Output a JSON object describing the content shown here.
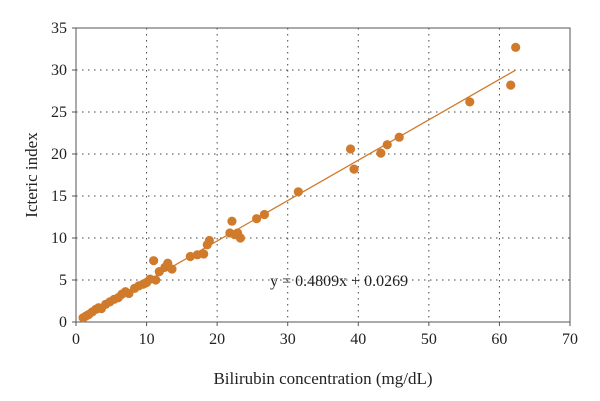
{
  "chart_data": {
    "type": "scatter",
    "title": "",
    "xlabel": "Bilirubin concentration (mg/dL)",
    "ylabel": "Icteric index",
    "xlim": [
      0,
      70
    ],
    "ylim": [
      0,
      35
    ],
    "x_ticks": [
      "0",
      "10",
      "20",
      "30",
      "40",
      "50",
      "60",
      "70"
    ],
    "y_ticks": [
      "0",
      "5",
      "10",
      "15",
      "20",
      "25",
      "30",
      "35"
    ],
    "grid": "dotted, x and y",
    "legend": "none",
    "marker_color": "#D07A2C",
    "trendline_color": "#D07A2C",
    "trendline": {
      "slope": 0.4809,
      "intercept": 0.0269,
      "x_range": [
        1,
        62.3
      ]
    },
    "annotation": {
      "text": "y = 0.4809x + 0.0269",
      "x": 27.5,
      "y": 4.3
    },
    "series": [
      {
        "points": [
          [
            1.0,
            0.5
          ],
          [
            1.4,
            0.7
          ],
          [
            1.8,
            0.9
          ],
          [
            2.3,
            1.2
          ],
          [
            2.8,
            1.5
          ],
          [
            3.2,
            1.7
          ],
          [
            3.6,
            1.6
          ],
          [
            4.2,
            2.1
          ],
          [
            4.8,
            2.4
          ],
          [
            5.4,
            2.7
          ],
          [
            6.0,
            2.9
          ],
          [
            6.5,
            3.3
          ],
          [
            7.0,
            3.6
          ],
          [
            7.5,
            3.4
          ],
          [
            8.3,
            4.0
          ],
          [
            8.9,
            4.3
          ],
          [
            9.5,
            4.5
          ],
          [
            10.0,
            4.7
          ],
          [
            10.5,
            5.1
          ],
          [
            11.0,
            7.3
          ],
          [
            11.3,
            5.0
          ],
          [
            11.8,
            6.0
          ],
          [
            12.6,
            6.5
          ],
          [
            13.0,
            7.0
          ],
          [
            13.6,
            6.3
          ],
          [
            16.2,
            7.8
          ],
          [
            17.2,
            8.0
          ],
          [
            18.1,
            8.1
          ],
          [
            18.6,
            9.2
          ],
          [
            18.9,
            9.7
          ],
          [
            21.8,
            10.6
          ],
          [
            22.1,
            12.0
          ],
          [
            22.5,
            10.4
          ],
          [
            22.9,
            10.6
          ],
          [
            23.3,
            10.0
          ],
          [
            25.6,
            12.3
          ],
          [
            26.7,
            12.8
          ],
          [
            31.5,
            15.5
          ],
          [
            38.9,
            20.6
          ],
          [
            39.4,
            18.2
          ],
          [
            43.2,
            20.1
          ],
          [
            44.1,
            21.1
          ],
          [
            45.8,
            22.0
          ],
          [
            55.8,
            26.2
          ],
          [
            61.6,
            28.2
          ],
          [
            62.3,
            32.7
          ]
        ]
      }
    ]
  }
}
